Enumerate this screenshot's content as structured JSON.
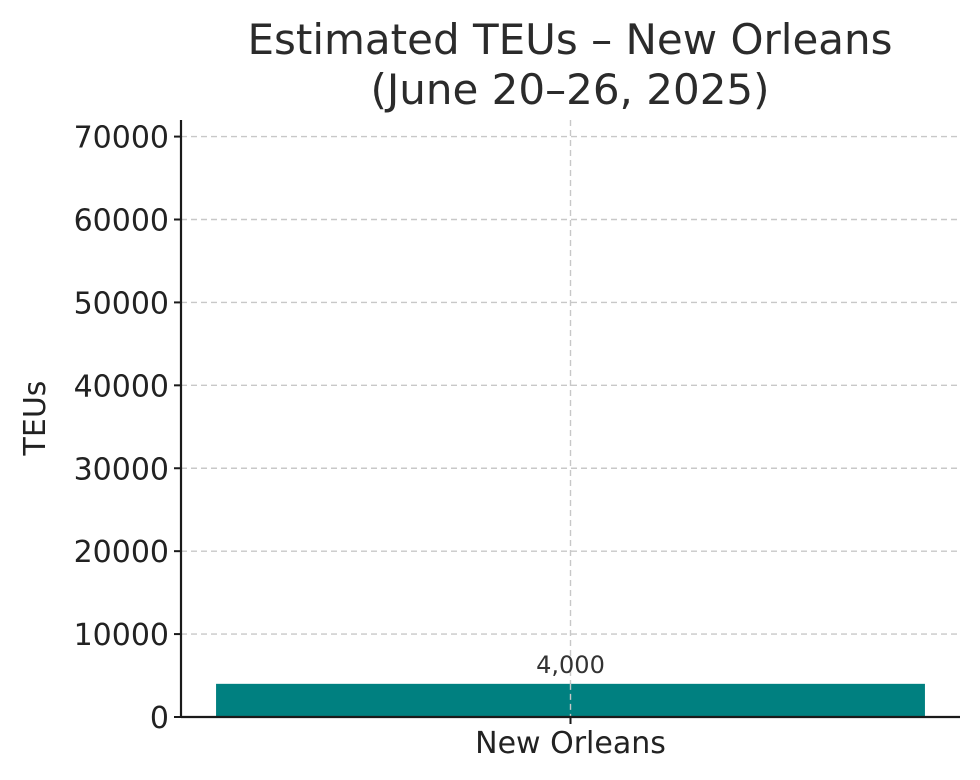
{
  "chart_data": {
    "type": "bar",
    "title_lines": [
      "Estimated TEUs – New Orleans",
      "(June 20–26, 2025)"
    ],
    "xlabel": "",
    "ylabel": "TEUs",
    "categories": [
      "New Orleans"
    ],
    "values": [
      4000
    ],
    "data_labels": [
      "4,000"
    ],
    "ylim": [
      0,
      72000
    ],
    "yticks": [
      0,
      10000,
      20000,
      30000,
      40000,
      50000,
      60000,
      70000
    ],
    "ytick_labels": [
      "0",
      "10000",
      "20000",
      "30000",
      "40000",
      "50000",
      "60000",
      "70000"
    ],
    "grid": true,
    "colors": {
      "bar": "#008080"
    }
  }
}
